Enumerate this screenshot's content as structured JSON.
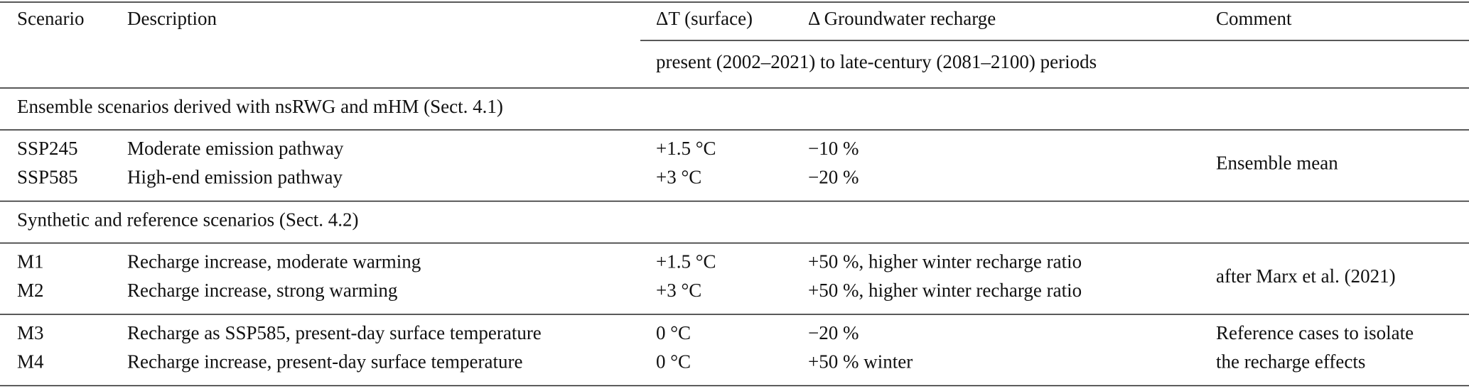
{
  "table": {
    "header": [
      "Scenario",
      "Description",
      "ΔT (surface)",
      "Δ Groundwater recharge",
      "Comment"
    ],
    "subheader": "present (2002–2021) to late-century (2081–2100) periods",
    "sections": [
      {
        "title": "Ensemble scenarios derived with nsRWG and mHM (Sect. 4.1)",
        "groups": [
          {
            "rows": [
              [
                "SSP245",
                "Moderate emission pathway",
                "+1.5 °C",
                "−10 %"
              ],
              [
                "SSP585",
                "High-end emission pathway",
                "+3 °C",
                "−20 %"
              ]
            ],
            "comment": [
              "Ensemble mean"
            ]
          }
        ]
      },
      {
        "title": "Synthetic and reference scenarios (Sect. 4.2)",
        "groups": [
          {
            "rows": [
              [
                "M1",
                "Recharge increase, moderate warming",
                "+1.5 °C",
                "+50 %, higher winter recharge ratio"
              ],
              [
                "M2",
                "Recharge increase, strong warming",
                "+3 °C",
                "+50 %, higher winter recharge ratio"
              ]
            ],
            "comment": [
              "after Marx et al. (2021)"
            ]
          },
          {
            "rows": [
              [
                "M3",
                "Recharge as SSP585, present-day surface temperature",
                "0 °C",
                "−20 %"
              ],
              [
                "M4",
                "Recharge increase, present-day surface temperature",
                "0 °C",
                "+50 % winter"
              ]
            ],
            "comment": [
              "Reference cases to isolate",
              "the recharge effects"
            ]
          }
        ]
      }
    ]
  }
}
